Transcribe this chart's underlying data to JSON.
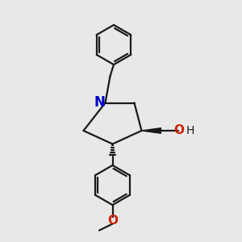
{
  "background_color": "#e8e8e8",
  "bond_color": "#1a1a1a",
  "nitrogen_color": "#0000cc",
  "oxygen_color": "#cc2200",
  "figsize": [
    3.0,
    3.0
  ],
  "dpi": 100,
  "xlim": [
    0,
    10
  ],
  "ylim": [
    0,
    10
  ]
}
